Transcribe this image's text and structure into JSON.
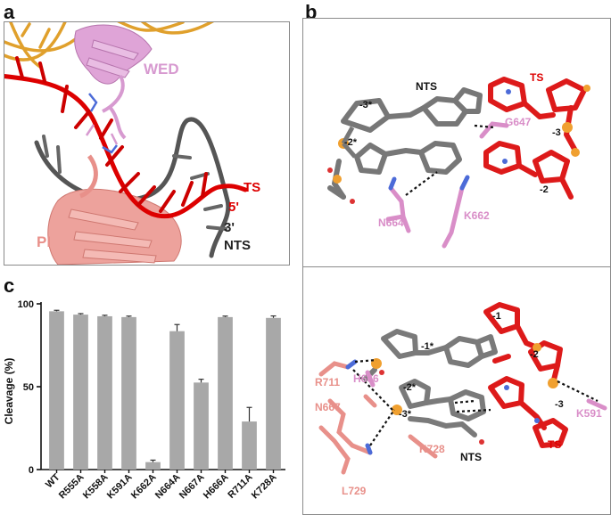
{
  "panels": {
    "a": {
      "label": "a",
      "labels": {
        "wed": "WED",
        "ts": "TS",
        "five_prime": "5'",
        "three_prime": "3'",
        "nts": "NTS",
        "pi": "PI"
      },
      "colors": {
        "wed": "#d79ad0",
        "ts": "#dd0000",
        "nts": "#505050",
        "pi": "#e8908a",
        "rna": "#e0a02c"
      }
    },
    "b": {
      "label": "b",
      "top": {
        "labels": {
          "nts": "NTS",
          "ts": "TS",
          "m3s": "-3*",
          "m2s": "-2*",
          "g647": "G647",
          "m3": "-3",
          "m2": "-2",
          "n664": "N664",
          "k662": "K662"
        }
      },
      "bottom": {
        "labels": {
          "m1": "-1",
          "m1s": "-1*",
          "m2": "-2",
          "r711": "R711",
          "h666": "H666",
          "m2s": "-2*",
          "k591": "K591",
          "n667": "N667",
          "m3s": "-3*",
          "m3": "-3",
          "ts": "TS",
          "k728": "K728",
          "nts": "NTS",
          "l729": "L729"
        }
      },
      "colors": {
        "nts_residues": "#d98ec8",
        "pi_residues": "#e8908a",
        "ts": "#dd0000",
        "nts": "#6e6e6e"
      }
    },
    "c": {
      "label": "c"
    }
  },
  "chart_data": {
    "type": "bar",
    "ylabel": "Cleavage (%)",
    "ylim": [
      0,
      100
    ],
    "yticks": [
      0,
      50,
      100
    ],
    "categories": [
      "WT",
      "R555A",
      "K558A",
      "K591A",
      "K662A",
      "N664A",
      "N667A",
      "H666A",
      "R711A",
      "K728A"
    ],
    "values": [
      95.5,
      93.5,
      92.5,
      92.0,
      4.5,
      83.5,
      52.5,
      92.0,
      29.0,
      91.5
    ],
    "errors": [
      0.6,
      0.6,
      0.6,
      0.6,
      1.2,
      4.0,
      2.0,
      0.6,
      8.5,
      1.2
    ],
    "bar_color": "#a8a8a8",
    "grid": false
  }
}
